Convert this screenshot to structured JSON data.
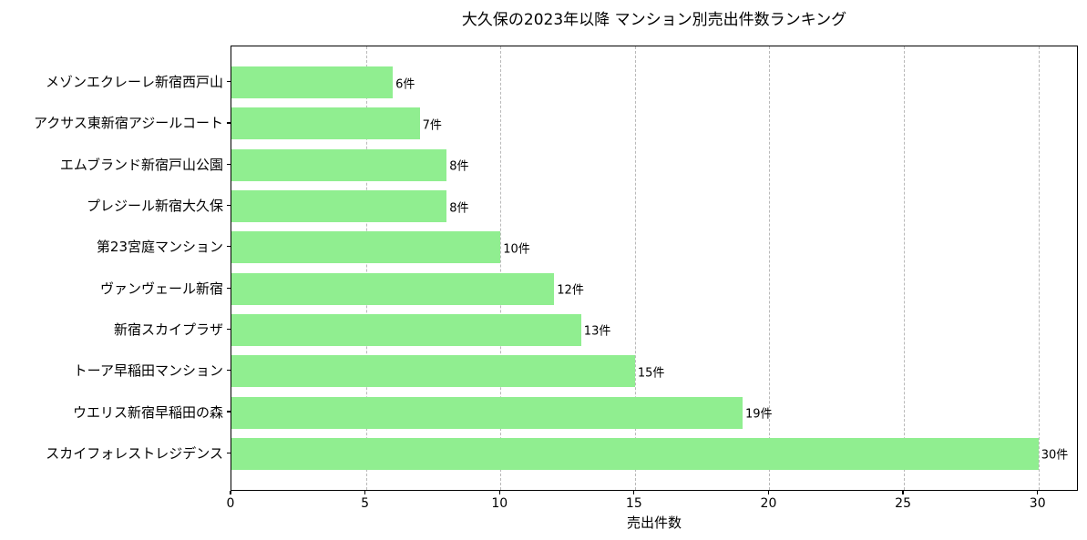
{
  "title": "大久保の2023年以降 マンション別売出件数ランキング",
  "colors": {
    "bar": "#90EE90",
    "grid": "#b9b9b9",
    "spine": "#000000",
    "text": "#000000",
    "background": "#ffffff"
  },
  "chart_data": {
    "type": "bar",
    "orientation": "horizontal",
    "title": "大久保の2023年以降 マンション別売出件数ランキング",
    "xlabel": "売出件数",
    "ylabel": "",
    "categories": [
      "メゾンエクレーレ新宿西戸山",
      "アクサス東新宿アジールコート",
      "エムブランド新宿戸山公園",
      "プレジール新宿大久保",
      "第23宮庭マンション",
      "ヴァンヴェール新宿",
      "新宿スカイプラザ",
      "トーア早稲田マンション",
      "ウエリス新宿早稲田の森",
      "スカイフォレストレジデンス"
    ],
    "values": [
      6,
      7,
      8,
      8,
      10,
      12,
      13,
      15,
      19,
      30
    ],
    "value_labels": [
      "6件",
      "7件",
      "8件",
      "8件",
      "10件",
      "12件",
      "13件",
      "15件",
      "19件",
      "30件"
    ],
    "xticks": [
      0,
      5,
      10,
      15,
      20,
      25,
      30
    ],
    "xlim": [
      0,
      31.5
    ],
    "bar_color": "#90EE90",
    "grid": "vertical-dashed",
    "legend": "none"
  }
}
